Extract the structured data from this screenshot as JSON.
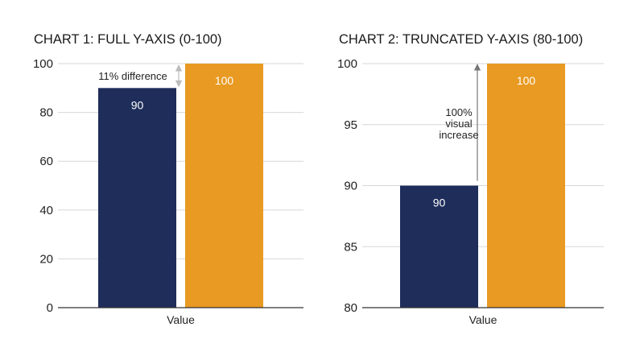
{
  "colors": {
    "bar_a": "#1e2d5a",
    "bar_b": "#e89a22",
    "grid": "#d7d7d7",
    "axis": "#333333",
    "arrow_light": "#bbbbbb",
    "arrow_dark": "#777777"
  },
  "chart_data": [
    {
      "type": "bar",
      "title": "CHART 1: FULL Y-AXIS (0-100)",
      "xlabel": "Value",
      "ylabel": "",
      "categories": [
        "Value"
      ],
      "series": [
        {
          "values": [
            90
          ],
          "label": "90"
        },
        {
          "values": [
            100
          ],
          "label": "100"
        }
      ],
      "ylim": [
        0,
        100
      ],
      "yticks": [
        0,
        20,
        40,
        60,
        80,
        100
      ],
      "ytick_labels": [
        "0",
        "20",
        "40",
        "60",
        "80",
        "100"
      ],
      "grid": true,
      "annotation": {
        "lines": [
          "11% difference"
        ],
        "from": 90,
        "to": 100
      }
    },
    {
      "type": "bar",
      "title": "CHART 2: TRUNCATED Y-AXIS (80-100)",
      "xlabel": "Value",
      "ylabel": "",
      "categories": [
        "Value"
      ],
      "series": [
        {
          "values": [
            90
          ],
          "label": "90"
        },
        {
          "values": [
            100
          ],
          "label": "100"
        }
      ],
      "ylim": [
        80,
        100
      ],
      "yticks": [
        80,
        85,
        90,
        95,
        100
      ],
      "ytick_labels": [
        "80",
        "85",
        "90",
        "95",
        "100"
      ],
      "grid": true,
      "annotation": {
        "lines": [
          "100%",
          "visual",
          "increase"
        ],
        "from": 90,
        "to": 100
      }
    }
  ]
}
